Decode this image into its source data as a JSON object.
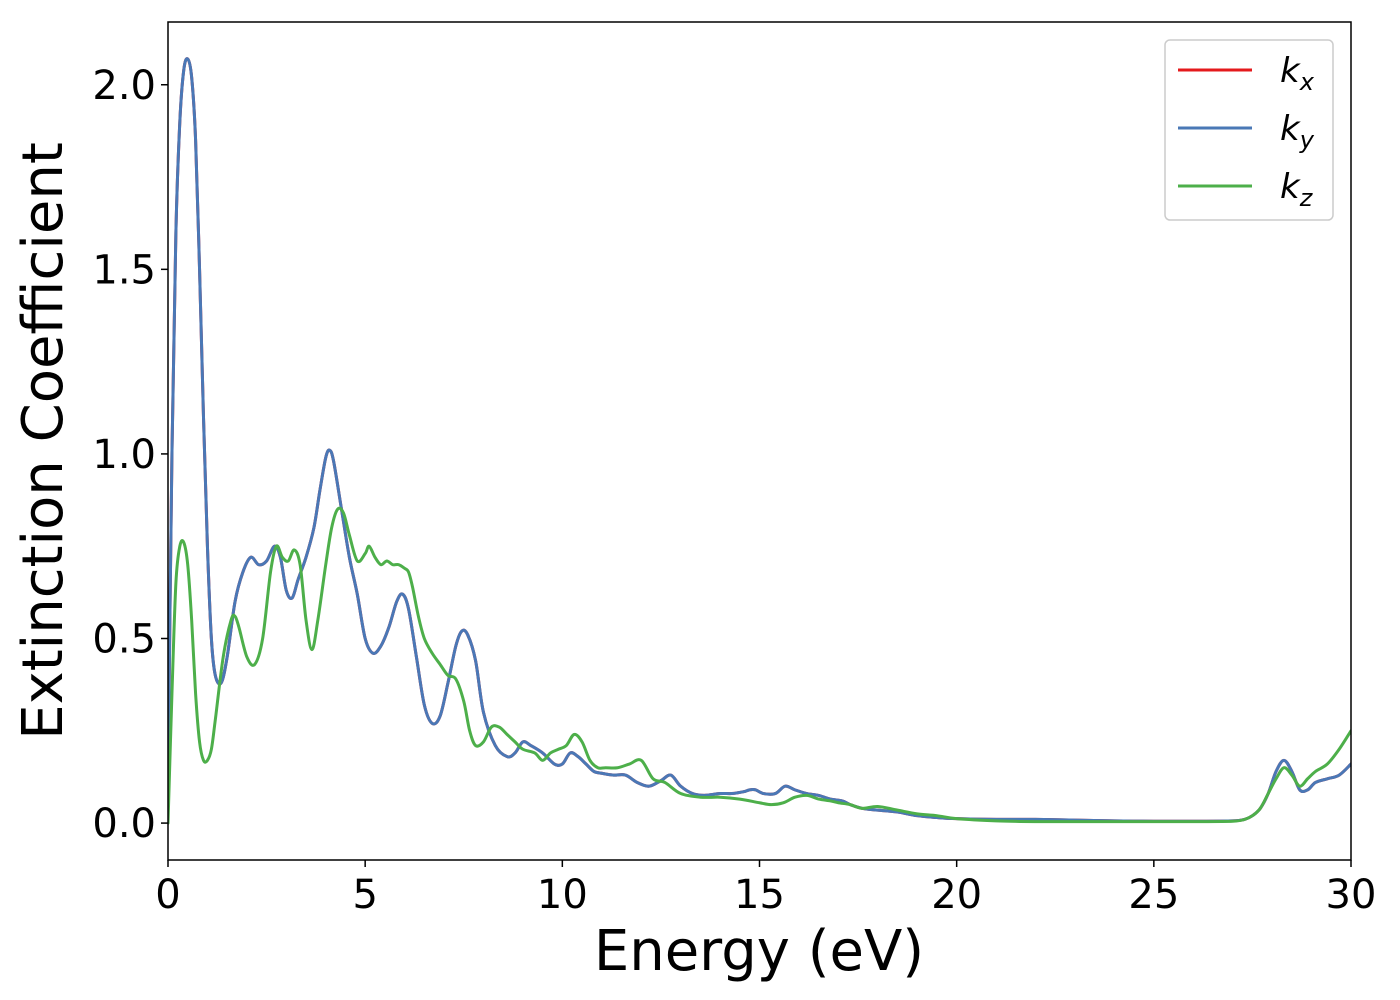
{
  "chart_data": {
    "type": "line",
    "xlabel": "Energy (eV)",
    "ylabel": "Extinction Coefficient",
    "xlim": [
      0,
      30
    ],
    "ylim": [
      -0.1,
      2.17
    ],
    "xticks": [
      "0",
      "5",
      "10",
      "15",
      "20",
      "25",
      "30"
    ],
    "yticks": [
      "0.0",
      "0.5",
      "1.0",
      "1.5",
      "2.0"
    ],
    "grid": false,
    "legend_position": "top-right",
    "series": [
      {
        "name": "k",
        "subscript": "x",
        "color": "#e41a1c",
        "x": [
          0,
          0.1,
          0.2,
          0.3,
          0.4,
          0.5,
          0.6,
          0.7,
          0.8,
          0.9,
          1.0,
          1.1,
          1.2,
          1.35,
          1.5,
          1.7,
          1.9,
          2.1,
          2.3,
          2.5,
          2.7,
          2.85,
          3.0,
          3.15,
          3.3,
          3.5,
          3.7,
          3.85,
          4.0,
          4.1,
          4.2,
          4.4,
          4.6,
          4.8,
          5.0,
          5.2,
          5.4,
          5.6,
          5.8,
          5.95,
          6.1,
          6.3,
          6.5,
          6.7,
          6.9,
          7.1,
          7.3,
          7.45,
          7.6,
          7.8,
          8.0,
          8.3,
          8.6,
          8.8,
          9.0,
          9.2,
          9.5,
          9.8,
          10.0,
          10.2,
          10.4,
          10.6,
          10.8,
          11.0,
          11.3,
          11.6,
          11.9,
          12.2,
          12.5,
          12.75,
          13.0,
          13.3,
          13.6,
          14.0,
          14.3,
          14.6,
          14.75,
          14.9,
          15.1,
          15.4,
          15.65,
          15.9,
          16.2,
          16.5,
          16.8,
          17.1,
          17.3,
          17.6,
          18.0,
          18.5,
          19.0,
          19.5,
          20.0,
          21.0,
          22.0,
          23.0,
          24.0,
          25.0,
          26.0,
          27.0,
          27.3,
          27.5,
          27.7,
          27.9,
          28.1,
          28.3,
          28.5,
          28.7,
          28.9,
          29.1,
          29.4,
          29.7,
          30.0
        ],
        "y": [
          0.1,
          1.0,
          1.6,
          1.9,
          2.04,
          2.07,
          2.02,
          1.85,
          1.5,
          1.1,
          0.75,
          0.5,
          0.4,
          0.38,
          0.45,
          0.6,
          0.68,
          0.72,
          0.7,
          0.71,
          0.75,
          0.72,
          0.63,
          0.61,
          0.66,
          0.72,
          0.8,
          0.9,
          0.99,
          1.01,
          0.98,
          0.85,
          0.72,
          0.62,
          0.5,
          0.46,
          0.48,
          0.53,
          0.6,
          0.62,
          0.58,
          0.45,
          0.32,
          0.27,
          0.29,
          0.38,
          0.48,
          0.52,
          0.51,
          0.44,
          0.3,
          0.21,
          0.18,
          0.19,
          0.22,
          0.21,
          0.19,
          0.16,
          0.16,
          0.19,
          0.18,
          0.16,
          0.14,
          0.135,
          0.13,
          0.13,
          0.11,
          0.1,
          0.115,
          0.13,
          0.1,
          0.08,
          0.075,
          0.08,
          0.08,
          0.085,
          0.09,
          0.09,
          0.08,
          0.08,
          0.1,
          0.09,
          0.08,
          0.075,
          0.065,
          0.06,
          0.05,
          0.04,
          0.035,
          0.03,
          0.02,
          0.015,
          0.012,
          0.01,
          0.01,
          0.008,
          0.006,
          0.005,
          0.005,
          0.006,
          0.01,
          0.02,
          0.04,
          0.08,
          0.14,
          0.17,
          0.14,
          0.09,
          0.09,
          0.11,
          0.12,
          0.13,
          0.16
        ]
      },
      {
        "name": "k",
        "subscript": "y",
        "color": "#4a78b6",
        "x": [
          0,
          0.1,
          0.2,
          0.3,
          0.4,
          0.5,
          0.6,
          0.7,
          0.8,
          0.9,
          1.0,
          1.1,
          1.2,
          1.35,
          1.5,
          1.7,
          1.9,
          2.1,
          2.3,
          2.5,
          2.7,
          2.85,
          3.0,
          3.15,
          3.3,
          3.5,
          3.7,
          3.85,
          4.0,
          4.1,
          4.2,
          4.4,
          4.6,
          4.8,
          5.0,
          5.2,
          5.4,
          5.6,
          5.8,
          5.95,
          6.1,
          6.3,
          6.5,
          6.7,
          6.9,
          7.1,
          7.3,
          7.45,
          7.6,
          7.8,
          8.0,
          8.3,
          8.6,
          8.8,
          9.0,
          9.2,
          9.5,
          9.8,
          10.0,
          10.2,
          10.4,
          10.6,
          10.8,
          11.0,
          11.3,
          11.6,
          11.9,
          12.2,
          12.5,
          12.75,
          13.0,
          13.3,
          13.6,
          14.0,
          14.3,
          14.6,
          14.75,
          14.9,
          15.1,
          15.4,
          15.65,
          15.9,
          16.2,
          16.5,
          16.8,
          17.1,
          17.3,
          17.6,
          18.0,
          18.5,
          19.0,
          19.5,
          20.0,
          21.0,
          22.0,
          23.0,
          24.0,
          25.0,
          26.0,
          27.0,
          27.3,
          27.5,
          27.7,
          27.9,
          28.1,
          28.3,
          28.5,
          28.7,
          28.9,
          29.1,
          29.4,
          29.7,
          30.0
        ],
        "y": [
          0.1,
          1.0,
          1.6,
          1.9,
          2.04,
          2.07,
          2.02,
          1.85,
          1.5,
          1.1,
          0.75,
          0.5,
          0.4,
          0.38,
          0.45,
          0.6,
          0.68,
          0.72,
          0.7,
          0.71,
          0.75,
          0.72,
          0.63,
          0.61,
          0.66,
          0.72,
          0.8,
          0.9,
          0.99,
          1.01,
          0.98,
          0.85,
          0.72,
          0.62,
          0.5,
          0.46,
          0.48,
          0.53,
          0.6,
          0.62,
          0.58,
          0.45,
          0.32,
          0.27,
          0.29,
          0.38,
          0.48,
          0.52,
          0.51,
          0.44,
          0.3,
          0.21,
          0.18,
          0.19,
          0.22,
          0.21,
          0.19,
          0.16,
          0.16,
          0.19,
          0.18,
          0.16,
          0.14,
          0.135,
          0.13,
          0.13,
          0.11,
          0.1,
          0.115,
          0.13,
          0.1,
          0.08,
          0.075,
          0.08,
          0.08,
          0.085,
          0.09,
          0.09,
          0.08,
          0.08,
          0.1,
          0.09,
          0.08,
          0.075,
          0.065,
          0.06,
          0.05,
          0.04,
          0.035,
          0.03,
          0.02,
          0.015,
          0.012,
          0.01,
          0.01,
          0.008,
          0.006,
          0.005,
          0.005,
          0.006,
          0.01,
          0.02,
          0.04,
          0.08,
          0.14,
          0.17,
          0.14,
          0.09,
          0.09,
          0.11,
          0.12,
          0.13,
          0.16
        ]
      },
      {
        "name": "k",
        "subscript": "z",
        "color": "#4daf4a",
        "x": [
          0,
          0.1,
          0.2,
          0.3,
          0.4,
          0.5,
          0.6,
          0.7,
          0.8,
          0.9,
          1.0,
          1.1,
          1.2,
          1.4,
          1.6,
          1.7,
          1.8,
          2.0,
          2.2,
          2.4,
          2.6,
          2.75,
          2.9,
          3.05,
          3.2,
          3.35,
          3.5,
          3.65,
          3.8,
          4.0,
          4.15,
          4.3,
          4.45,
          4.6,
          4.8,
          5.0,
          5.1,
          5.25,
          5.4,
          5.55,
          5.7,
          5.85,
          6.0,
          6.1,
          6.2,
          6.35,
          6.5,
          6.7,
          6.9,
          7.1,
          7.3,
          7.5,
          7.65,
          7.8,
          8.0,
          8.2,
          8.4,
          8.6,
          8.8,
          9.0,
          9.3,
          9.5,
          9.7,
          9.9,
          10.1,
          10.3,
          10.5,
          10.7,
          10.9,
          11.1,
          11.4,
          11.7,
          12.0,
          12.3,
          12.6,
          13.0,
          13.5,
          14.0,
          14.5,
          15.0,
          15.3,
          15.6,
          15.9,
          16.2,
          16.5,
          16.8,
          17.0,
          17.3,
          17.6,
          18.0,
          18.5,
          19.0,
          19.5,
          20.0,
          21.0,
          22.0,
          23.0,
          24.0,
          25.0,
          26.0,
          27.0,
          27.3,
          27.5,
          27.7,
          27.9,
          28.1,
          28.3,
          28.5,
          28.7,
          28.9,
          29.1,
          29.4,
          29.7,
          30.0
        ],
        "y": [
          0.0,
          0.35,
          0.65,
          0.75,
          0.76,
          0.7,
          0.55,
          0.35,
          0.22,
          0.17,
          0.17,
          0.2,
          0.28,
          0.45,
          0.55,
          0.56,
          0.53,
          0.45,
          0.43,
          0.5,
          0.68,
          0.75,
          0.72,
          0.71,
          0.74,
          0.7,
          0.55,
          0.47,
          0.55,
          0.7,
          0.8,
          0.85,
          0.84,
          0.78,
          0.71,
          0.73,
          0.75,
          0.72,
          0.7,
          0.71,
          0.7,
          0.7,
          0.69,
          0.68,
          0.64,
          0.56,
          0.5,
          0.46,
          0.43,
          0.4,
          0.39,
          0.33,
          0.25,
          0.21,
          0.22,
          0.26,
          0.26,
          0.24,
          0.22,
          0.2,
          0.19,
          0.17,
          0.19,
          0.2,
          0.21,
          0.24,
          0.22,
          0.17,
          0.15,
          0.15,
          0.15,
          0.16,
          0.17,
          0.12,
          0.11,
          0.08,
          0.07,
          0.07,
          0.065,
          0.055,
          0.05,
          0.055,
          0.07,
          0.075,
          0.065,
          0.06,
          0.055,
          0.05,
          0.04,
          0.045,
          0.035,
          0.025,
          0.02,
          0.012,
          0.006,
          0.004,
          0.004,
          0.004,
          0.004,
          0.004,
          0.005,
          0.01,
          0.02,
          0.04,
          0.08,
          0.12,
          0.15,
          0.13,
          0.1,
          0.12,
          0.14,
          0.16,
          0.2,
          0.25
        ]
      }
    ]
  }
}
